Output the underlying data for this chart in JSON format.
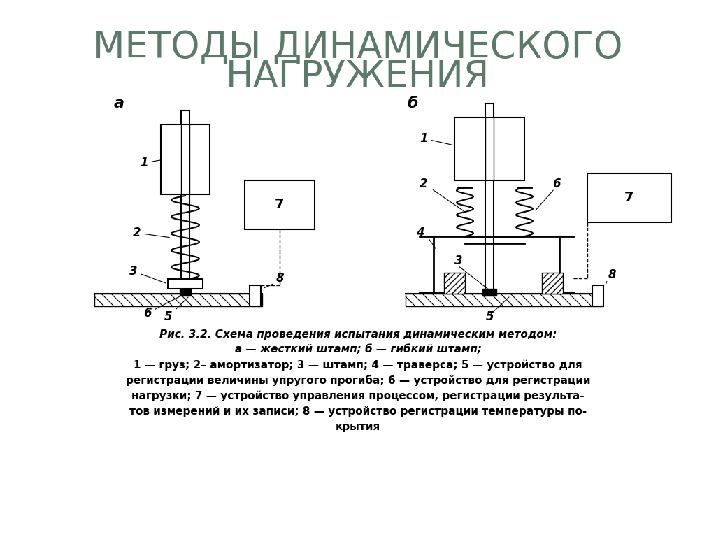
{
  "title_line1": "МЕТОДЫ ДИНАМИЧЕСКОГО",
  "title_line2": "НАГРУЖЕНИЯ",
  "title_color": "#5a7a6a",
  "title_fontsize": 38,
  "bg_color": "#ffffff",
  "caption_line1": "Рис. 3.2. Схема проведения испытания динамическим методом:",
  "caption_line2": "а — жесткий штамп; б — гибкий штамп;",
  "caption_line3": "1 — груз; 2– амортизатор; 3 — штамп; 4 — траверса; 5 — устройство для",
  "caption_line4": "регистрации величины упругого прогиба; 6 — устройство для регистрации",
  "caption_line5": "нагрузки; 7 — устройство управления процессом, регистрации результа-",
  "caption_line6": "тов измерений и их записи; 8 — устройство регистрации температуры по-",
  "caption_line7": "крытия",
  "label_a": "а",
  "label_b": "б"
}
